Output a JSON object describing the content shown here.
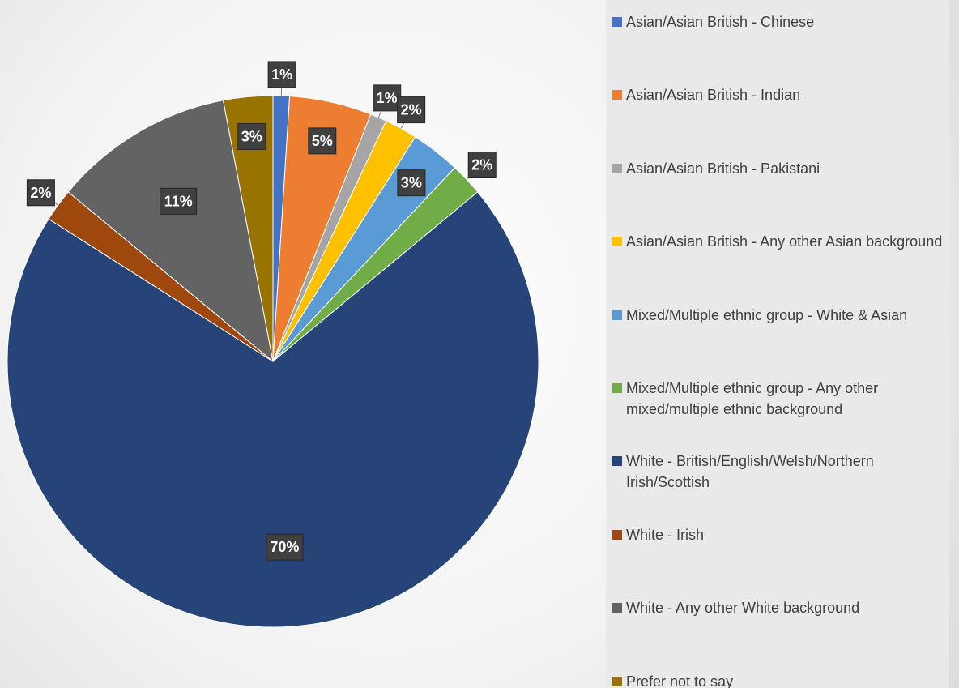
{
  "chart_data": {
    "type": "pie",
    "categories": [
      "Asian/Asian British - Chinese",
      "Asian/Asian British - Indian",
      "Asian/Asian British - Pakistani",
      "Asian/Asian British - Any other Asian background",
      "Mixed/Multiple ethnic group - White & Asian",
      "Mixed/Multiple ethnic group - Any other mixed/multiple ethnic background",
      "White - British/English/Welsh/Northern Irish/Scottish",
      "White - Irish",
      "White - Any other White background",
      "Prefer not to say"
    ],
    "values": [
      1,
      5,
      1,
      2,
      3,
      2,
      70,
      2,
      11,
      3
    ],
    "value_labels": [
      "1%",
      "5%",
      "1%",
      "2%",
      "3%",
      "2%",
      "70%",
      "2%",
      "11%",
      "3%"
    ],
    "colors": [
      "#4472c4",
      "#ed7d31",
      "#a5a5a5",
      "#ffc000",
      "#5b9bd5",
      "#70ad47",
      "#264478",
      "#9e480e",
      "#636363",
      "#997300"
    ],
    "legend": "right"
  }
}
